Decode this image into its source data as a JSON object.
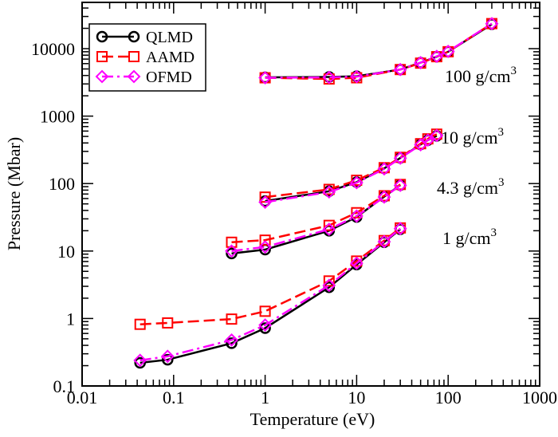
{
  "chart_data": {
    "type": "line",
    "title": "",
    "xlabel": "Temperature (eV)",
    "ylabel": "Pressure (Mbar)",
    "xscale": "log",
    "yscale": "log",
    "xlim": [
      0.01,
      1000
    ],
    "ylim": [
      0.1,
      100000
    ],
    "x_ticks": [
      0.01,
      0.1,
      1,
      10,
      100,
      1000
    ],
    "x_tick_labels": [
      "0.01",
      "0.1",
      "1",
      "10",
      "100",
      "1000"
    ],
    "y_ticks": [
      0.1,
      1,
      10,
      100,
      1000,
      10000
    ],
    "y_tick_labels": [
      "0.1",
      "1",
      "10",
      "100",
      "1000",
      "10000"
    ],
    "grid": false,
    "legend": {
      "position": "top-left",
      "entries": [
        "QLMD",
        "AAMD",
        "OFMD"
      ]
    },
    "series_styles": {
      "QLMD": {
        "color": "#000000",
        "marker": "circle",
        "dash": "solid"
      },
      "AAMD": {
        "color": "#ff0000",
        "marker": "square",
        "dash": "dashed"
      },
      "OFMD": {
        "color": "#ff00ff",
        "marker": "diamond",
        "dash": "dash-dot"
      }
    },
    "annotations": [
      {
        "text": "100 g/cm",
        "sup": "3",
        "x": 110,
        "y": 3000
      },
      {
        "text": "10 g/cm",
        "sup": "3",
        "x": 110,
        "y": 450
      },
      {
        "text": "4.3 g/cm",
        "sup": "3",
        "x": 90,
        "y": 90
      },
      {
        "text": "1 g/cm",
        "sup": "3",
        "x": 100,
        "y": 12
      }
    ],
    "groups": [
      {
        "density": "100 g/cm3",
        "series": [
          {
            "name": "QLMD",
            "x": [
              1,
              5,
              10,
              30,
              50,
              75,
              100,
              300
            ],
            "y": [
              3750,
              3800,
              3900,
              4900,
              6200,
              7600,
              9000,
              23000
            ]
          },
          {
            "name": "AAMD",
            "x": [
              1,
              5,
              10,
              30,
              50,
              75,
              100,
              300
            ],
            "y": [
              3700,
              3550,
              3700,
              4900,
              6100,
              7600,
              9000,
              23500
            ]
          },
          {
            "name": "OFMD",
            "x": [
              1,
              5,
              10,
              30,
              50,
              75,
              100,
              300
            ],
            "y": [
              3700,
              3750,
              3850,
              4900,
              6200,
              7700,
              9100,
              23500
            ]
          }
        ]
      },
      {
        "density": "10 g/cm3",
        "series": [
          {
            "name": "QLMD",
            "x": [
              1,
              5,
              10,
              20,
              30,
              50,
              60,
              75
            ],
            "y": [
              55,
              77,
              105,
              168,
              240,
              380,
              440,
              510
            ]
          },
          {
            "name": "AAMD",
            "x": [
              1,
              5,
              10,
              20,
              30,
              50,
              60,
              75
            ],
            "y": [
              63,
              82,
              112,
              172,
              245,
              390,
              460,
              540
            ]
          },
          {
            "name": "OFMD",
            "x": [
              1,
              5,
              10,
              20,
              30,
              50,
              60,
              75
            ],
            "y": [
              53,
              75,
              103,
              165,
              238,
              375,
              440,
              515
            ]
          }
        ]
      },
      {
        "density": "4.3 g/cm3",
        "series": [
          {
            "name": "QLMD",
            "x": [
              0.43,
              1,
              5,
              10,
              20,
              30
            ],
            "y": [
              9.2,
              10.5,
              20,
              32,
              64,
              95
            ]
          },
          {
            "name": "AAMD",
            "x": [
              0.43,
              1,
              5,
              10,
              20,
              30
            ],
            "y": [
              13.5,
              14.5,
              24,
              37,
              66,
              97
            ]
          },
          {
            "name": "OFMD",
            "x": [
              0.43,
              1,
              5,
              10,
              20,
              30
            ],
            "y": [
              10,
              11.5,
              21,
              33,
              63,
              94
            ]
          }
        ]
      },
      {
        "density": "1 g/cm3",
        "series": [
          {
            "name": "QLMD",
            "x": [
              0.043,
              0.086,
              0.43,
              1,
              5,
              10,
              20,
              30
            ],
            "y": [
              0.22,
              0.245,
              0.43,
              0.72,
              2.9,
              6.3,
              13.5,
              21
            ]
          },
          {
            "name": "AAMD",
            "x": [
              0.043,
              0.086,
              0.43,
              1,
              5,
              10,
              20,
              30
            ],
            "y": [
              0.82,
              0.86,
              0.98,
              1.28,
              3.6,
              7.1,
              14.3,
              22
            ]
          },
          {
            "name": "OFMD",
            "x": [
              0.043,
              0.086,
              0.43,
              1,
              5,
              10,
              20,
              30
            ],
            "y": [
              0.24,
              0.275,
              0.48,
              0.8,
              3.1,
              6.6,
              13.8,
              21.5
            ]
          }
        ]
      }
    ]
  }
}
